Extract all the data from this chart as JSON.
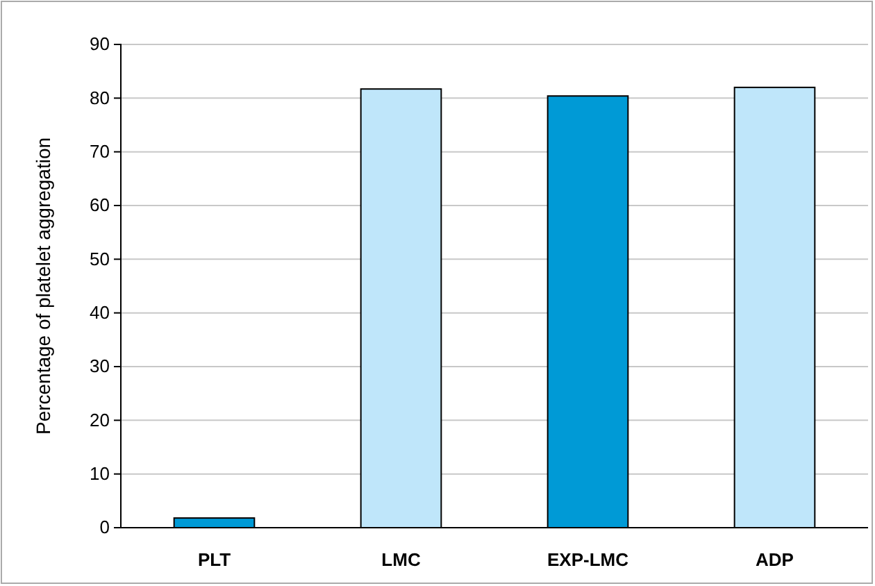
{
  "chart_data": {
    "type": "bar",
    "ylabel": "Percentage of platelet aggregation",
    "categories": [
      "PLT",
      "LMC",
      "EXP-LMC",
      "ADP"
    ],
    "values": [
      1.8,
      81.7,
      80.4,
      82.0
    ],
    "colors": [
      "#009ad6",
      "#bfe6fa",
      "#009ad6",
      "#bfe6fa"
    ],
    "ylim": [
      0,
      90
    ],
    "yticks": [
      0,
      10,
      20,
      30,
      40,
      50,
      60,
      70,
      80,
      90
    ],
    "grid": "y"
  }
}
